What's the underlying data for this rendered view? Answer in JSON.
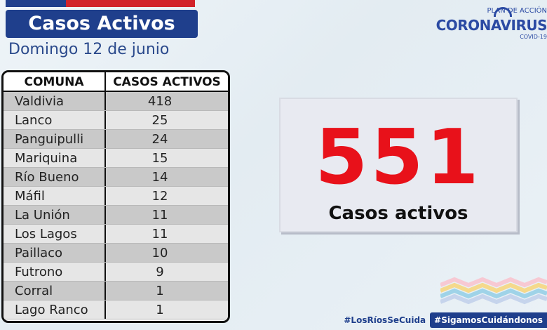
{
  "header": {
    "title": "Casos Activos",
    "subtitle": "Domingo 12 de junio"
  },
  "logo": {
    "plan": "PLAN DE ACCIÓN",
    "name": "CORONAVIRUS",
    "covid": "COVID-19"
  },
  "table": {
    "columns": [
      "COMUNA",
      "CASOS ACTIVOS"
    ],
    "rows": [
      {
        "comuna": "Valdivia",
        "casos": "418"
      },
      {
        "comuna": "Lanco",
        "casos": "25"
      },
      {
        "comuna": "Panguipulli",
        "casos": "24"
      },
      {
        "comuna": "Mariquina",
        "casos": "15"
      },
      {
        "comuna": "Río Bueno",
        "casos": "14"
      },
      {
        "comuna": "Máfil",
        "casos": "12"
      },
      {
        "comuna": "La Unión",
        "casos": "11"
      },
      {
        "comuna": "Los Lagos",
        "casos": "11"
      },
      {
        "comuna": "Paillaco",
        "casos": "10"
      },
      {
        "comuna": "Futrono",
        "casos": "9"
      },
      {
        "comuna": "Corral",
        "casos": "1"
      },
      {
        "comuna": "Lago Ranco",
        "casos": "1"
      }
    ]
  },
  "total": {
    "number": "551",
    "label": "Casos activos"
  },
  "footer": {
    "hashtag1": "#LosRíosSeCuida",
    "hashtag2": "#SigamosCuidándonos"
  },
  "colors": {
    "brand_blue": "#1f3f8c",
    "brand_red": "#d2232a",
    "total_red": "#e8111a"
  }
}
